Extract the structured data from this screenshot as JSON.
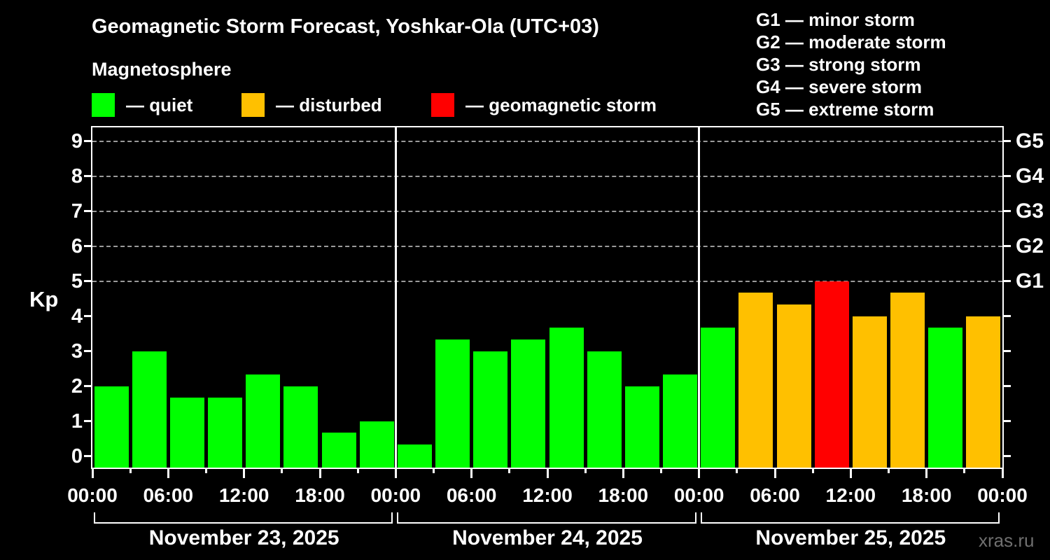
{
  "header": {
    "title": "Geomagnetic Storm Forecast, Yoshkar-Ola (UTC+03)",
    "subtitle": "Magnetosphere",
    "legend": [
      {
        "status": "quiet",
        "label": "— quiet"
      },
      {
        "status": "disturbed",
        "label": "— disturbed"
      },
      {
        "status": "storm",
        "label": "— geomagnetic storm"
      }
    ],
    "g_scale": [
      "G1 — minor storm",
      "G2 — moderate storm",
      "G3 — strong storm",
      "G4 — severe storm",
      "G5 — extreme storm"
    ]
  },
  "watermark": "xras.ru",
  "chart_data": {
    "type": "bar",
    "title": "Geomagnetic Storm Forecast, Yoshkar-Ola (UTC+03)",
    "subtitle": "Magnetosphere",
    "xlabel": "",
    "ylabel": "Kp",
    "ylim": [
      0,
      9.4
    ],
    "grid": "dashed horizontal lines at Kp 5-9 only",
    "yticks": [
      0,
      1,
      2,
      3,
      4,
      5,
      6,
      7,
      8,
      9
    ],
    "grid_levels": [
      5,
      6,
      7,
      8,
      9
    ],
    "right_axis": [
      {
        "kp": 5,
        "label": "G1"
      },
      {
        "kp": 6,
        "label": "G2"
      },
      {
        "kp": 7,
        "label": "G3"
      },
      {
        "kp": 8,
        "label": "G4"
      },
      {
        "kp": 9,
        "label": "G5"
      }
    ],
    "bar_interval_hours": 3,
    "x_tick_labels_per_day": [
      "00:00",
      "06:00",
      "12:00",
      "18:00"
    ],
    "final_tick_label": "00:00",
    "colors": {
      "quiet": "#00ff00",
      "disturbed": "#ffc000",
      "storm": "#ff0000"
    },
    "axis_color": "#ffffff",
    "grid_color": "#9a9a9a",
    "days": [
      {
        "date": "November 23, 2025",
        "values": [
          2,
          3,
          1.67,
          1.67,
          2.33,
          2,
          0.67,
          1
        ],
        "statuses": [
          "quiet",
          "quiet",
          "quiet",
          "quiet",
          "quiet",
          "quiet",
          "quiet",
          "quiet"
        ]
      },
      {
        "date": "November 24, 2025",
        "values": [
          0.33,
          3.33,
          3,
          3.33,
          3.67,
          3,
          2,
          2.33
        ],
        "statuses": [
          "quiet",
          "quiet",
          "quiet",
          "quiet",
          "quiet",
          "quiet",
          "quiet",
          "quiet"
        ]
      },
      {
        "date": "November 25, 2025",
        "values": [
          3.67,
          4.67,
          4.33,
          5,
          4,
          4.67,
          3.67,
          4
        ],
        "statuses": [
          "quiet",
          "disturbed",
          "disturbed",
          "storm",
          "disturbed",
          "disturbed",
          "quiet",
          "disturbed"
        ]
      }
    ]
  }
}
